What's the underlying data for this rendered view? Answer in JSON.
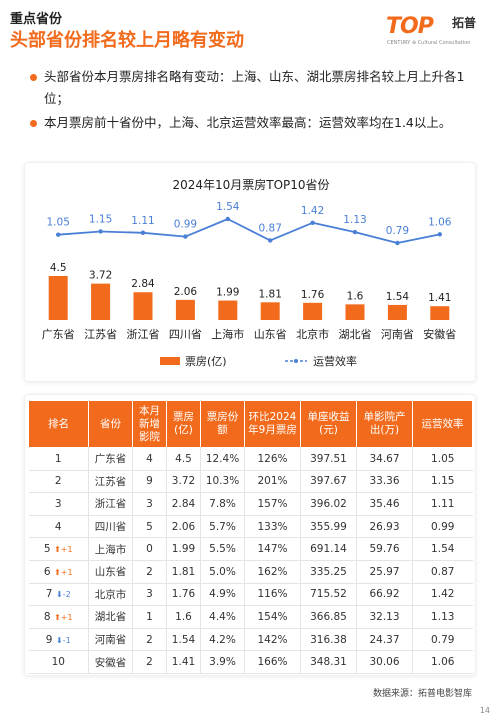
{
  "header": {
    "section": "重点省份",
    "title": "头部省份排名较上月略有变动",
    "logo_mark": "TOP",
    "logo_sub": "CENTURY ⊕ Cultural Consultation",
    "logo_cn": "拓普"
  },
  "bullets": [
    "头部省份本月票房排名略有变动：上海、山东、湖北票房排名较上月上升各1位；",
    "本月票房前十省份中，上海、北京运营效率最高：运营效率均在1.4以上。"
  ],
  "chart_data": {
    "type": "bar",
    "title": "2024年10月票房TOP10省份",
    "categories": [
      "广东省",
      "江苏省",
      "浙江省",
      "四川省",
      "上海市",
      "山东省",
      "北京市",
      "湖北省",
      "河南省",
      "安徽省"
    ],
    "series": [
      {
        "name": "票房(亿)",
        "type": "bar",
        "values": [
          4.5,
          3.72,
          2.84,
          2.06,
          1.99,
          1.81,
          1.76,
          1.6,
          1.54,
          1.41
        ],
        "color": "#f26b1d"
      },
      {
        "name": "运营效率",
        "type": "line",
        "values": [
          1.05,
          1.15,
          1.11,
          0.99,
          1.54,
          0.87,
          1.42,
          1.13,
          0.79,
          1.06
        ],
        "color": "#4a7fd6"
      }
    ],
    "value_labels_bar": [
      "4.5",
      "3.72",
      "2.84",
      "2.06",
      "1.99",
      "1.81",
      "1.76",
      "1.6",
      "1.54",
      "1.41"
    ],
    "value_labels_line": [
      "1.05",
      "1.15",
      "1.11",
      "0.99",
      "1.54",
      "0.87",
      "1.42",
      "1.13",
      "0.79",
      "1.06"
    ],
    "legend": [
      "票房(亿)",
      "运营效率"
    ],
    "legend_position": "bottom",
    "grid": false
  },
  "table": {
    "headers": [
      "排名",
      "省份",
      "本月新增影院",
      "票房(亿)",
      "票房份额",
      "环比2024年9月票房",
      "单座收益(元)",
      "单影院产出(万)",
      "运营效率"
    ],
    "rows": [
      {
        "rank": "1",
        "change": "",
        "dir": "",
        "cells": [
          "广东省",
          "4",
          "4.5",
          "12.4%",
          "126%",
          "397.51",
          "34.67",
          "1.05"
        ]
      },
      {
        "rank": "2",
        "change": "",
        "dir": "",
        "cells": [
          "江苏省",
          "9",
          "3.72",
          "10.3%",
          "201%",
          "397.67",
          "33.36",
          "1.15"
        ]
      },
      {
        "rank": "3",
        "change": "",
        "dir": "",
        "cells": [
          "浙江省",
          "3",
          "2.84",
          "7.8%",
          "157%",
          "396.02",
          "35.46",
          "1.11"
        ]
      },
      {
        "rank": "4",
        "change": "",
        "dir": "",
        "cells": [
          "四川省",
          "5",
          "2.06",
          "5.7%",
          "133%",
          "355.99",
          "26.93",
          "0.99"
        ]
      },
      {
        "rank": "5",
        "change": "+1",
        "dir": "up",
        "cells": [
          "上海市",
          "0",
          "1.99",
          "5.5%",
          "147%",
          "691.14",
          "59.76",
          "1.54"
        ]
      },
      {
        "rank": "6",
        "change": "+1",
        "dir": "up",
        "cells": [
          "山东省",
          "2",
          "1.81",
          "5.0%",
          "162%",
          "335.25",
          "25.97",
          "0.87"
        ]
      },
      {
        "rank": "7",
        "change": "-2",
        "dir": "down",
        "cells": [
          "北京市",
          "3",
          "1.76",
          "4.9%",
          "116%",
          "715.52",
          "66.92",
          "1.42"
        ]
      },
      {
        "rank": "8",
        "change": "+1",
        "dir": "up",
        "cells": [
          "湖北省",
          "1",
          "1.6",
          "4.4%",
          "154%",
          "366.85",
          "32.13",
          "1.13"
        ]
      },
      {
        "rank": "9",
        "change": "-1",
        "dir": "down",
        "cells": [
          "河南省",
          "2",
          "1.54",
          "4.2%",
          "142%",
          "316.38",
          "24.37",
          "0.79"
        ]
      },
      {
        "rank": "10",
        "change": "",
        "dir": "",
        "cells": [
          "安徽省",
          "2",
          "1.41",
          "3.9%",
          "166%",
          "348.31",
          "30.06",
          "1.06"
        ]
      }
    ]
  },
  "footer": {
    "source": "数据来源：拓普电影智库",
    "page": "14"
  },
  "colors": {
    "accent": "#f26b1d",
    "line": "#4a7fd6"
  }
}
